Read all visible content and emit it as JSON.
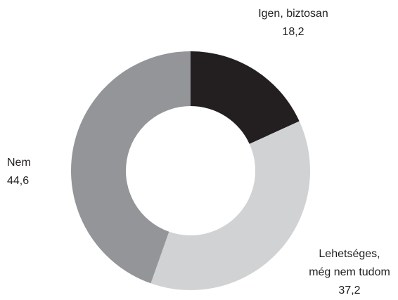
{
  "chart_data": {
    "type": "donut",
    "categories": [
      "Igen, biztosan",
      "Lehetséges,\nmég nem tudom",
      "Nem"
    ],
    "values": [
      18.2,
      37.2,
      44.6
    ],
    "value_labels": [
      "18,2",
      "37,2",
      "44,6"
    ],
    "colors": [
      "#231f20",
      "#d1d2d4",
      "#939598"
    ]
  }
}
